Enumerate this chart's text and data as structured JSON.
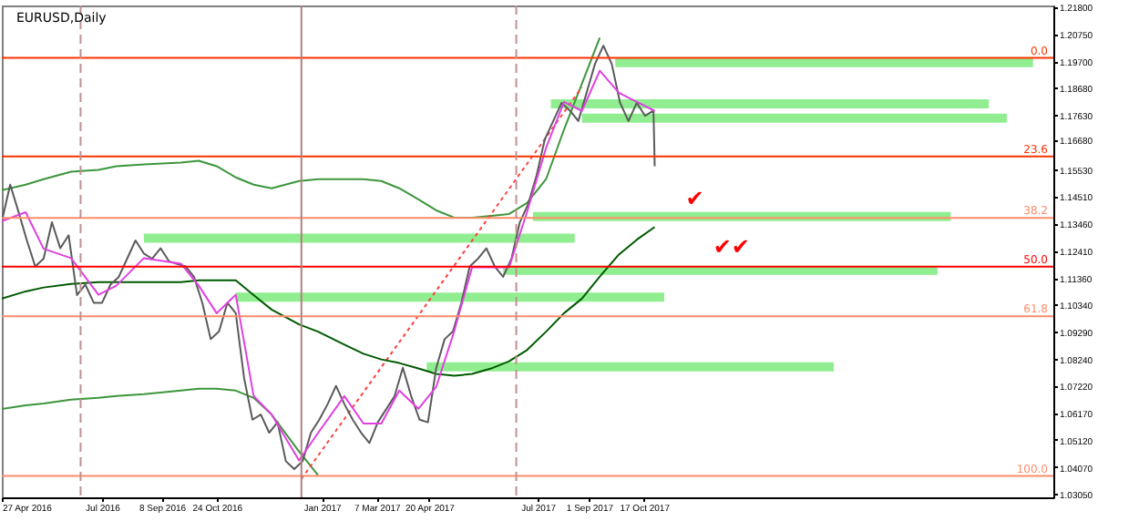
{
  "chart_data": {
    "type": "line",
    "title": "EURUSD,Daily",
    "grid": false,
    "xlim": [
      "2016-04-27",
      "2018-09-25"
    ],
    "xticks": [
      {
        "value": "2016-04-27",
        "label": "27 Apr 2016"
      },
      {
        "value": "2016-07-20",
        "label": "Jul 2016"
      },
      {
        "value": "2016-09-08",
        "label": "8 Sep 2016"
      },
      {
        "value": "2016-10-24",
        "label": "24 Oct 2016"
      },
      {
        "value": "2017-01-20",
        "label": "Jan 2017"
      },
      {
        "value": "2017-03-07",
        "label": "7 Mar 2017"
      },
      {
        "value": "2017-04-20",
        "label": "20 Apr 2017"
      },
      {
        "value": "2017-07-20",
        "label": "Jul 2017"
      },
      {
        "value": "2017-09-01",
        "label": "1 Sep 2017"
      },
      {
        "value": "2017-10-17",
        "label": "17 Oct 2017"
      }
    ],
    "ylim": [
      1.0291,
      1.2185
    ],
    "yticks": [
      {
        "value": 1.218,
        "label": "1.21800"
      },
      {
        "value": 1.2075,
        "label": "1.20750"
      },
      {
        "value": 1.197,
        "label": "1.19700"
      },
      {
        "value": 1.1868,
        "label": "1.18680"
      },
      {
        "value": 1.1763,
        "label": "1.17630"
      },
      {
        "value": 1.1668,
        "label": "1.16680"
      },
      {
        "value": 1.1553,
        "label": "1.15530"
      },
      {
        "value": 1.1451,
        "label": "1.14510"
      },
      {
        "value": 1.1346,
        "label": "1.13460"
      },
      {
        "value": 1.1241,
        "label": "1.12410"
      },
      {
        "value": 1.1136,
        "label": "1.11360"
      },
      {
        "value": 1.1034,
        "label": "1.10340"
      },
      {
        "value": 1.0929,
        "label": "1.09290"
      },
      {
        "value": 1.0824,
        "label": "1.08240"
      },
      {
        "value": 1.0722,
        "label": "1.07220"
      },
      {
        "value": 1.0617,
        "label": "1.06170"
      },
      {
        "value": 1.0512,
        "label": "1.05120"
      },
      {
        "value": 1.0407,
        "label": "1.04070"
      },
      {
        "value": 1.0305,
        "label": "1.03050"
      }
    ],
    "series": [
      {
        "color": "#90ee90",
        "x": [
          "2017-09-23",
          "2018-09-08"
        ],
        "values": [
          1.1965,
          1.1965
        ]
      },
      {
        "color": "#90ee90",
        "x": [
          "2017-07-31",
          "2018-08-02"
        ],
        "values": [
          1.1806,
          1.1806
        ]
      },
      {
        "color": "#90ee90",
        "x": [
          "2017-08-26",
          "2018-08-17"
        ],
        "values": [
          1.1751,
          1.1751
        ]
      },
      {
        "color": "#90ee90",
        "x": [
          "2017-07-16",
          "2018-07-01"
        ],
        "values": [
          1.1372,
          1.1372
        ]
      },
      {
        "color": "#90ee90",
        "x": [
          "2016-08-24",
          "2017-08-20"
        ],
        "values": [
          1.1289,
          1.1289
        ]
      },
      {
        "color": "#90ee90",
        "x": [
          "2017-06-21",
          "2018-06-20"
        ],
        "values": [
          1.1165,
          1.1165
        ]
      },
      {
        "color": "#90ee90",
        "x": [
          "2016-11-09",
          "2017-11-03"
        ],
        "values": [
          1.1062,
          1.1062
        ]
      },
      {
        "color": "#90ee90",
        "x": [
          "2017-04-18",
          "2018-03-25"
        ],
        "values": [
          1.0793,
          1.0793
        ]
      },
      {
        "color": "#3c963c",
        "x": [
          "2016-04-27",
          "2016-05-17",
          "2016-06-01",
          "2016-06-24",
          "2016-07-17",
          "2016-08-01",
          "2016-08-24",
          "2016-09-24",
          "2016-10-09",
          "2016-10-24",
          "2016-11-09",
          "2016-11-24",
          "2016-12-09",
          "2017-01-01",
          "2017-01-17",
          "2017-02-08",
          "2017-02-24",
          "2017-03-11",
          "2017-03-26",
          "2017-04-11",
          "2017-04-26",
          "2017-05-11",
          "2017-05-26",
          "2017-06-11",
          "2017-06-26",
          "2017-07-11",
          "2017-07-27",
          "2017-08-11",
          "2017-08-26",
          "2017-09-10"
        ],
        "values": [
          1.1474,
          1.1495,
          1.1516,
          1.1545,
          1.1552,
          1.1566,
          1.1573,
          1.158,
          1.1587,
          1.1566,
          1.1523,
          1.1495,
          1.1481,
          1.1509,
          1.1516,
          1.1516,
          1.1516,
          1.1509,
          1.1481,
          1.1438,
          1.1396,
          1.1368,
          1.1368,
          1.1375,
          1.1382,
          1.1424,
          1.1516,
          1.1707,
          1.1884,
          1.2061
        ]
      },
      {
        "color": "#3c963c",
        "x": [
          "2016-04-27",
          "2016-05-17",
          "2016-06-01",
          "2016-06-24",
          "2016-07-17",
          "2016-08-01",
          "2016-08-24",
          "2016-09-24",
          "2016-10-09",
          "2016-10-24",
          "2016-11-09",
          "2016-11-24",
          "2016-12-09",
          "2017-01-01",
          "2017-01-17"
        ],
        "values": [
          1.0631,
          1.0645,
          1.0652,
          1.0667,
          1.0674,
          1.0681,
          1.0688,
          1.0702,
          1.0709,
          1.0709,
          1.0702,
          1.0674,
          1.061,
          1.0468,
          1.0376
        ]
      },
      {
        "color": "#ff4040",
        "line_style": "dotted",
        "x": [
          "2017-01-03",
          "2017-08-26"
        ],
        "values": [
          1.0362,
          1.187
        ]
      },
      {
        "color": "#005a00",
        "x": [
          "2016-04-27",
          "2016-05-17",
          "2016-06-01",
          "2016-06-24",
          "2016-07-17",
          "2016-08-01",
          "2016-08-24",
          "2016-09-24",
          "2016-10-09",
          "2016-10-24",
          "2016-11-09",
          "2016-11-24",
          "2016-12-09",
          "2017-01-01",
          "2017-01-17",
          "2017-02-08",
          "2017-02-24",
          "2017-03-11",
          "2017-03-26",
          "2017-04-11",
          "2017-04-26",
          "2017-05-11",
          "2017-05-26",
          "2017-06-11",
          "2017-06-26",
          "2017-07-11",
          "2017-07-27",
          "2017-08-11",
          "2017-08-26",
          "2017-09-10",
          "2017-09-26",
          "2017-10-11",
          "2017-10-26"
        ],
        "values": [
          1.1056,
          1.1084,
          1.1099,
          1.1113,
          1.112,
          1.112,
          1.112,
          1.112,
          1.1127,
          1.1127,
          1.1127,
          1.107,
          1.1014,
          1.0957,
          1.0929,
          1.0879,
          1.0844,
          1.0822,
          1.0808,
          1.0787,
          1.0766,
          1.0759,
          1.0766,
          1.0787,
          1.0815,
          1.0858,
          1.0929,
          1.1,
          1.1056,
          1.1141,
          1.1226,
          1.1283,
          1.1332
        ]
      },
      {
        "color": "#5a5a5a",
        "x": [
          "2016-04-27",
          "2016-05-04",
          "2016-05-11",
          "2016-05-18",
          "2016-05-25",
          "2016-06-01",
          "2016-06-08",
          "2016-06-15",
          "2016-06-22",
          "2016-06-29",
          "2016-07-06",
          "2016-07-13",
          "2016-07-20",
          "2016-07-27",
          "2016-08-03",
          "2016-08-10",
          "2016-08-17",
          "2016-08-24",
          "2016-08-31",
          "2016-09-07",
          "2016-09-14",
          "2016-09-21",
          "2016-09-28",
          "2016-10-05",
          "2016-10-12",
          "2016-10-19",
          "2016-10-26",
          "2016-11-02",
          "2016-11-09",
          "2016-11-16",
          "2016-11-23",
          "2016-11-30",
          "2016-12-07",
          "2016-12-14",
          "2016-12-21",
          "2016-12-28",
          "2017-01-04",
          "2017-01-11",
          "2017-01-18",
          "2017-01-25",
          "2017-02-01",
          "2017-02-08",
          "2017-02-15",
          "2017-02-22",
          "2017-03-01",
          "2017-03-08",
          "2017-03-15",
          "2017-03-22",
          "2017-03-29",
          "2017-04-05",
          "2017-04-12",
          "2017-04-19",
          "2017-04-26",
          "2017-05-03",
          "2017-05-10",
          "2017-05-17",
          "2017-05-24",
          "2017-05-31",
          "2017-06-07",
          "2017-06-14",
          "2017-06-21",
          "2017-06-28",
          "2017-07-05",
          "2017-07-12",
          "2017-07-19",
          "2017-07-26",
          "2017-08-02",
          "2017-08-09",
          "2017-08-16",
          "2017-08-23",
          "2017-08-30",
          "2017-09-06",
          "2017-09-13",
          "2017-09-20",
          "2017-09-27",
          "2017-10-04",
          "2017-10-11",
          "2017-10-18",
          "2017-10-25",
          "2017-10-26"
        ],
        "values": [
          1.1354,
          1.1495,
          1.139,
          1.128,
          1.118,
          1.121,
          1.135,
          1.125,
          1.13,
          1.107,
          1.111,
          1.104,
          1.104,
          1.111,
          1.114,
          1.121,
          1.128,
          1.123,
          1.121,
          1.125,
          1.12,
          1.119,
          1.118,
          1.114,
          1.104,
          1.09,
          1.093,
          1.104,
          1.1,
          1.075,
          1.059,
          1.061,
          1.054,
          1.058,
          1.043,
          1.04,
          1.043,
          1.054,
          1.059,
          1.065,
          1.072,
          1.065,
          1.059,
          1.054,
          1.05,
          1.058,
          1.063,
          1.068,
          1.079,
          1.068,
          1.059,
          1.058,
          1.079,
          1.09,
          1.093,
          1.104,
          1.118,
          1.121,
          1.125,
          1.118,
          1.114,
          1.121,
          1.135,
          1.142,
          1.153,
          1.167,
          1.174,
          1.181,
          1.178,
          1.174,
          1.185,
          1.196,
          1.203,
          1.196,
          1.181,
          1.174,
          1.181,
          1.176,
          1.178,
          1.1566
        ]
      },
      {
        "color": "#e040e0",
        "x": [
          "2016-04-27",
          "2016-05-17",
          "2016-06-01",
          "2016-06-24",
          "2016-07-17",
          "2016-08-01",
          "2016-08-24",
          "2016-09-24",
          "2016-10-09",
          "2016-10-24",
          "2016-11-09",
          "2016-11-24",
          "2016-12-09",
          "2017-01-01",
          "2017-01-17",
          "2017-02-08",
          "2017-02-24",
          "2017-03-11",
          "2017-03-26",
          "2017-04-11",
          "2017-04-26",
          "2017-05-11",
          "2017-05-26",
          "2017-06-11",
          "2017-06-26",
          "2017-07-11",
          "2017-07-27",
          "2017-08-11",
          "2017-08-26",
          "2017-09-10",
          "2017-09-26",
          "2017-10-11",
          "2017-10-26"
        ],
        "values": [
          1.1354,
          1.1389,
          1.1248,
          1.1212,
          1.1071,
          1.1106,
          1.1212,
          1.1191,
          1.1106,
          1.1,
          1.1071,
          1.0681,
          1.061,
          1.0433,
          1.0539,
          1.0681,
          1.0575,
          1.0575,
          1.0702,
          1.0632,
          1.0717,
          1.093,
          1.1177,
          1.1177,
          1.1177,
          1.1389,
          1.1637,
          1.1814,
          1.1779,
          1.1934,
          1.1849,
          1.1814,
          1.1779
        ]
      }
    ],
    "ref_lines": [
      {
        "axis": "y",
        "value": 1.1983,
        "color": "#ff3300"
      },
      {
        "axis": "y",
        "value": 1.1604,
        "color": "#ff3300"
      },
      {
        "axis": "y",
        "value": 1.1367,
        "color": "#ff8c69"
      },
      {
        "axis": "y",
        "value": 1.1179,
        "color": "#ff0000"
      },
      {
        "axis": "y",
        "value": 1.0988,
        "color": "#ff8c69"
      },
      {
        "axis": "y",
        "value": 1.0373,
        "color": "#ff8c69"
      },
      {
        "axis": "x",
        "value": "2016-07-02",
        "color": "#c09090",
        "line_style": "dashed"
      },
      {
        "axis": "x",
        "value": "2017-01-03",
        "color": "#b08080",
        "line_style": "solid"
      },
      {
        "axis": "x",
        "value": "2017-07-02",
        "color": "#c09090",
        "line_style": "dashed"
      }
    ],
    "annotations": [
      {
        "text": "✔",
        "x": "2017-11-21",
        "y": 1.1393
      },
      {
        "text": "✔✔",
        "x": "2017-12-14",
        "y": 1.1207
      },
      "0.0",
      "23.6",
      "38.2",
      "50.0",
      "61.8",
      "100.0"
    ]
  }
}
